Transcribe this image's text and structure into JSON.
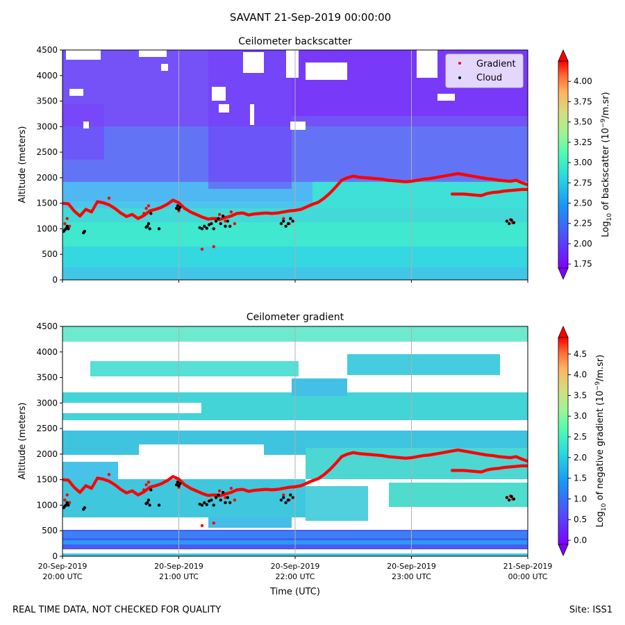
{
  "suptitle": "SAVANT 21-Sep-2019 00:00:00",
  "footer_left": "REAL TIME DATA, NOT CHECKED FOR QUALITY",
  "footer_right": "Site: ISS1",
  "colors": {
    "gradient_marker": "#ff0000",
    "cloud_marker": "#000000",
    "grid": "#b0b0b0"
  },
  "chart_data": [
    {
      "type": "heatmap",
      "title": "Ceilometer backscatter",
      "ylabel": "Altitude (meters)",
      "xlabel": "",
      "ylim": [
        0,
        4500
      ],
      "yticks": [
        "0",
        "500",
        "1000",
        "1500",
        "2000",
        "2500",
        "3000",
        "3500",
        "4000",
        "4500"
      ],
      "show_x_tick_labels": false,
      "colorbar": {
        "label_prefix": "Log",
        "label_sub": "10",
        "label_mid": " of backscatter (10",
        "label_sup": "−9",
        "label_suffix": "/m.sr)",
        "min": 1.7,
        "max": 4.25,
        "ticks": [
          "1.75",
          "2.00",
          "2.25",
          "2.50",
          "2.75",
          "3.00",
          "3.25",
          "3.50",
          "3.75",
          "4.00"
        ],
        "tick_values": [
          1.75,
          2.0,
          2.25,
          2.5,
          2.75,
          3.0,
          3.25,
          3.5,
          3.75,
          4.0
        ]
      },
      "legend": {
        "position": "top-right",
        "entries": [
          {
            "label": "Gradient",
            "color": "#ff0000"
          },
          {
            "label": "Cloud",
            "color": "#000000"
          }
        ]
      }
    },
    {
      "type": "heatmap",
      "title": "Ceilometer gradient",
      "ylabel": "Altitude (meters)",
      "xlabel": "Time (UTC)",
      "ylim": [
        0,
        4500
      ],
      "yticks": [
        "0",
        "500",
        "1000",
        "1500",
        "2000",
        "2500",
        "3000",
        "3500",
        "4000",
        "4500"
      ],
      "xticks": [
        {
          "date": "20-Sep-2019",
          "time": "20:00 UTC"
        },
        {
          "date": "20-Sep-2019",
          "time": "21:00 UTC"
        },
        {
          "date": "20-Sep-2019",
          "time": "22:00 UTC"
        },
        {
          "date": "20-Sep-2019",
          "time": "23:00 UTC"
        },
        {
          "date": "21-Sep-2019",
          "time": "00:00 UTC"
        }
      ],
      "colorbar": {
        "label_prefix": "Log",
        "label_sub": "10",
        "label_mid": " of negative gradient (10",
        "label_sup": "−9",
        "label_suffix": "/m.sr)",
        "min": -0.1,
        "max": 4.9,
        "ticks": [
          "0.0",
          "0.5",
          "1.0",
          "1.5",
          "2.0",
          "2.5",
          "3.0",
          "3.5",
          "4.0",
          "4.5"
        ],
        "tick_values": [
          0.0,
          0.5,
          1.0,
          1.5,
          2.0,
          2.5,
          3.0,
          3.5,
          4.0,
          4.5
        ]
      }
    }
  ],
  "series": {
    "time_range_hours": [
      0,
      4
    ],
    "gradient_layer_1": [
      [
        0.0,
        1500
      ],
      [
        0.05,
        1490
      ],
      [
        0.1,
        1350
      ],
      [
        0.15,
        1250
      ],
      [
        0.2,
        1380
      ],
      [
        0.25,
        1330
      ],
      [
        0.3,
        1530
      ],
      [
        0.35,
        1510
      ],
      [
        0.4,
        1470
      ],
      [
        0.45,
        1400
      ],
      [
        0.5,
        1310
      ],
      [
        0.55,
        1240
      ],
      [
        0.6,
        1280
      ],
      [
        0.65,
        1200
      ],
      [
        0.7,
        1260
      ],
      [
        0.75,
        1350
      ],
      [
        0.8,
        1380
      ],
      [
        0.85,
        1420
      ],
      [
        0.9,
        1480
      ],
      [
        0.95,
        1560
      ],
      [
        1.0,
        1510
      ],
      [
        1.05,
        1400
      ],
      [
        1.1,
        1330
      ],
      [
        1.15,
        1280
      ],
      [
        1.2,
        1230
      ],
      [
        1.25,
        1190
      ],
      [
        1.3,
        1200
      ],
      [
        1.35,
        1180
      ],
      [
        1.4,
        1220
      ],
      [
        1.45,
        1250
      ],
      [
        1.5,
        1300
      ],
      [
        1.55,
        1310
      ],
      [
        1.6,
        1270
      ],
      [
        1.65,
        1290
      ],
      [
        1.7,
        1300
      ],
      [
        1.75,
        1310
      ],
      [
        1.8,
        1300
      ],
      [
        1.85,
        1310
      ],
      [
        1.9,
        1330
      ],
      [
        1.95,
        1350
      ],
      [
        2.0,
        1360
      ],
      [
        2.05,
        1380
      ],
      [
        2.1,
        1430
      ],
      [
        2.15,
        1480
      ],
      [
        2.2,
        1520
      ],
      [
        2.25,
        1600
      ],
      [
        2.3,
        1700
      ],
      [
        2.35,
        1820
      ],
      [
        2.4,
        1950
      ],
      [
        2.45,
        2000
      ],
      [
        2.5,
        2030
      ],
      [
        2.55,
        2010
      ],
      [
        2.6,
        2000
      ],
      [
        2.65,
        1990
      ],
      [
        2.7,
        1980
      ],
      [
        2.75,
        1970
      ],
      [
        2.8,
        1950
      ],
      [
        2.85,
        1940
      ],
      [
        2.9,
        1930
      ],
      [
        2.95,
        1920
      ],
      [
        3.0,
        1930
      ],
      [
        3.05,
        1950
      ],
      [
        3.1,
        1970
      ],
      [
        3.15,
        1980
      ],
      [
        3.2,
        2000
      ],
      [
        3.25,
        2020
      ],
      [
        3.3,
        2040
      ],
      [
        3.35,
        2060
      ],
      [
        3.4,
        2080
      ],
      [
        3.45,
        2060
      ],
      [
        3.5,
        2040
      ],
      [
        3.55,
        2020
      ],
      [
        3.6,
        2000
      ],
      [
        3.65,
        1980
      ],
      [
        3.7,
        1970
      ],
      [
        3.75,
        1950
      ],
      [
        3.8,
        1940
      ],
      [
        3.85,
        1930
      ],
      [
        3.9,
        1950
      ],
      [
        3.95,
        1900
      ],
      [
        4.0,
        1860
      ]
    ],
    "gradient_layer_2": [
      [
        3.35,
        1680
      ],
      [
        3.4,
        1680
      ],
      [
        3.45,
        1680
      ],
      [
        3.5,
        1670
      ],
      [
        3.55,
        1660
      ],
      [
        3.6,
        1650
      ],
      [
        3.65,
        1690
      ],
      [
        3.7,
        1710
      ],
      [
        3.75,
        1720
      ],
      [
        3.8,
        1740
      ],
      [
        3.85,
        1750
      ],
      [
        3.9,
        1760
      ],
      [
        3.95,
        1770
      ],
      [
        4.0,
        1770
      ]
    ],
    "gradient_scatter": [
      [
        0.02,
        1100
      ],
      [
        0.04,
        1200
      ],
      [
        0.06,
        1050
      ],
      [
        0.4,
        1600
      ],
      [
        0.7,
        1300
      ],
      [
        0.72,
        1400
      ],
      [
        0.74,
        1450
      ],
      [
        0.98,
        1400
      ],
      [
        1.0,
        1350
      ],
      [
        1.2,
        600
      ],
      [
        1.3,
        650
      ],
      [
        1.32,
        1200
      ],
      [
        1.35,
        1280
      ],
      [
        1.4,
        1150
      ],
      [
        1.45,
        1330
      ],
      [
        1.48,
        1100
      ],
      [
        1.9,
        1200
      ],
      [
        1.95,
        1100
      ],
      [
        3.85,
        1180
      ],
      [
        3.87,
        1120
      ]
    ],
    "cloud_points": [
      [
        0.01,
        950
      ],
      [
        0.02,
        980
      ],
      [
        0.03,
        1000
      ],
      [
        0.04,
        1050
      ],
      [
        0.05,
        1000
      ],
      [
        0.18,
        920
      ],
      [
        0.19,
        950
      ],
      [
        0.72,
        1030
      ],
      [
        0.73,
        1050
      ],
      [
        0.74,
        1100
      ],
      [
        0.75,
        1000
      ],
      [
        0.76,
        1300
      ],
      [
        0.98,
        1400
      ],
      [
        0.99,
        1450
      ],
      [
        1.0,
        1380
      ],
      [
        1.01,
        1420
      ],
      [
        0.83,
        1000
      ],
      [
        1.18,
        1020
      ],
      [
        1.2,
        1000
      ],
      [
        1.22,
        1050
      ],
      [
        1.24,
        1010
      ],
      [
        1.26,
        1080
      ],
      [
        1.28,
        1100
      ],
      [
        1.3,
        1000
      ],
      [
        1.32,
        1150
      ],
      [
        1.34,
        1200
      ],
      [
        1.36,
        1100
      ],
      [
        1.38,
        1250
      ],
      [
        1.4,
        1050
      ],
      [
        1.42,
        1150
      ],
      [
        1.44,
        1050
      ],
      [
        1.88,
        1100
      ],
      [
        1.9,
        1150
      ],
      [
        1.92,
        1050
      ],
      [
        1.94,
        1100
      ],
      [
        1.96,
        1200
      ],
      [
        1.98,
        1150
      ],
      [
        3.82,
        1150
      ],
      [
        3.84,
        1100
      ],
      [
        3.86,
        1170
      ],
      [
        3.88,
        1120
      ]
    ]
  }
}
